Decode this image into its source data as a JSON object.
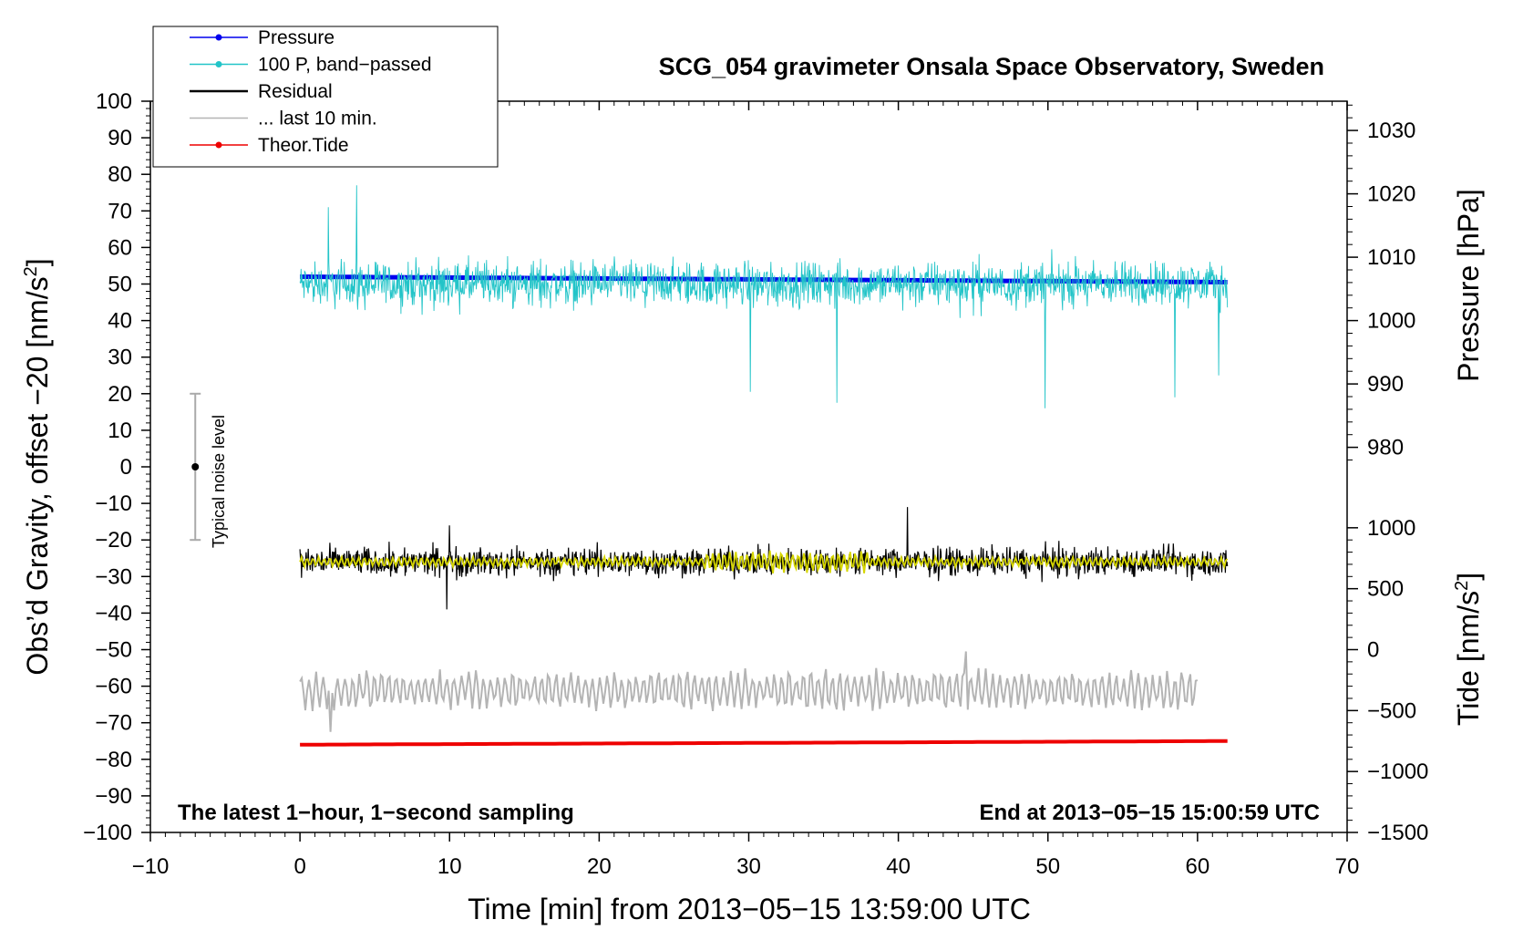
{
  "chart_data": {
    "type": "line",
    "title": "SCG_054 gravimeter Onsala Space Observatory, Sweden",
    "xlabel": "Time [min] from 2013−05−15 13:59:00 UTC",
    "ylabel_left": "Obs’d Gravity, offset −20 [nm/s",
    "ylabel_left_sup": "2",
    "ylabel_left_end": "]",
    "ylabel_right_pressure": "Pressure [hPa]",
    "ylabel_right_tide": "Tide [nm/s",
    "ylabel_right_tide_sup": "2",
    "ylabel_right_tide_end": "]",
    "xlim": [
      -10,
      70
    ],
    "ylim": [
      -100,
      100
    ],
    "x_ticks": [
      -10,
      0,
      10,
      20,
      30,
      40,
      50,
      60,
      70
    ],
    "x_tick_labels": [
      "−10",
      "0",
      "10",
      "20",
      "30",
      "40",
      "50",
      "60",
      "70"
    ],
    "y_ticks": [
      100,
      90,
      80,
      70,
      60,
      50,
      40,
      30,
      20,
      10,
      0,
      -10,
      -20,
      -30,
      -40,
      -50,
      -60,
      -70,
      -80,
      -90,
      -100
    ],
    "y_tick_labels": [
      "100",
      "90",
      "80",
      "70",
      "60",
      "50",
      "40",
      "30",
      "20",
      "10",
      "0",
      "−10",
      "−20",
      "−30",
      "−40",
      "−50",
      "−60",
      "−70",
      "−80",
      "−90",
      "−100"
    ],
    "pressure_axis": {
      "ticks": [
        980,
        990,
        1000,
        1010,
        1020,
        1030
      ],
      "tick_labels": [
        "980",
        "990",
        "1000",
        "1010",
        "1020",
        "1030"
      ],
      "map": {
        "p0": 1000,
        "y0": 40,
        "p1": 1030,
        "y1": 92
      }
    },
    "tide_axis": {
      "ticks": [
        1000,
        500,
        0,
        -500,
        -1000,
        -1500
      ],
      "tick_labels": [
        "1000",
        "500",
        "0",
        "−500",
        "−1000",
        "−1500"
      ],
      "map": {
        "t0": 0,
        "y0": -50,
        "t1": -1500,
        "y1": -100
      }
    },
    "legend": [
      {
        "label": "Pressure",
        "color": "#0000ee",
        "marker": true
      },
      {
        "label": "100 P, band−passed",
        "color": "#22c4c8",
        "marker": true
      },
      {
        "label": "Residual",
        "color": "#000000",
        "marker": false
      },
      {
        "label": "... last 10 min.",
        "color": "#b4b4b4",
        "marker": false
      },
      {
        "label": "Theor.Tide",
        "color": "#ee0000",
        "marker": true
      }
    ],
    "series": [
      {
        "name": "Pressure",
        "color": "#0000ee",
        "x_range": [
          0,
          62
        ],
        "start": 52,
        "end": 50.5,
        "kind": "trend"
      },
      {
        "name": "100 P, band−passed",
        "color": "#22c4c8",
        "x_range": [
          0,
          62
        ],
        "mean": 50,
        "amplitude": 8,
        "kind": "noise",
        "spikes": [
          [
            1.9,
            71
          ],
          [
            3.8,
            77
          ],
          [
            30.1,
            20.5
          ],
          [
            35.9,
            17.5
          ],
          [
            49.8,
            16
          ],
          [
            58.5,
            19
          ],
          [
            61.4,
            25
          ]
        ]
      },
      {
        "name": "Residual",
        "color": "#000000",
        "x_range": [
          0,
          62
        ],
        "mean": -26,
        "amplitude": 5,
        "kind": "noise",
        "spikes": [
          [
            9.8,
            -39
          ],
          [
            40.6,
            -11
          ],
          [
            10,
            -16
          ]
        ]
      },
      {
        "name": "Residual smoothed",
        "color": "#d6d600",
        "x_range": [
          0,
          62
        ],
        "mean": -26,
        "amplitude": 1.5,
        "kind": "smooth"
      },
      {
        "name": "... last 10 min.",
        "color": "#b4b4b4",
        "x_range": [
          0,
          60
        ],
        "mean": -61,
        "amplitude": 5,
        "kind": "oscillation",
        "spikes": [
          [
            44.5,
            -50.5
          ],
          [
            2.1,
            -72.5
          ]
        ]
      },
      {
        "name": "Theor.Tide",
        "color": "#ee0000",
        "x_range": [
          0,
          62
        ],
        "start": -76,
        "end": -75,
        "kind": "trend"
      }
    ],
    "noise_bar": {
      "label": "Typical noise level",
      "x": -7,
      "center": 0,
      "half_width": 20
    },
    "annotation_left": "The latest 1−hour, 1−second sampling",
    "annotation_right": "End at 2013−05−15 15:00:59 UTC"
  }
}
